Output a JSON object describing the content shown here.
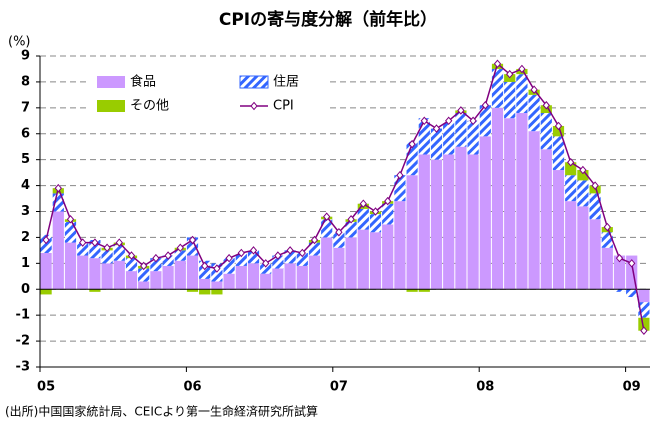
{
  "chart_data": {
    "type": "bar",
    "title": "CPIの寄与度分解（前年比）",
    "y_unit": "(%)",
    "source": "(出所)中国国家統計局、CEICより第一生命経済研究所試算",
    "categories": [
      "05",
      null,
      null,
      null,
      null,
      null,
      null,
      null,
      null,
      null,
      null,
      null,
      "06",
      null,
      null,
      null,
      null,
      null,
      null,
      null,
      null,
      null,
      null,
      null,
      "07",
      null,
      null,
      null,
      null,
      null,
      null,
      null,
      null,
      null,
      null,
      null,
      "08",
      null,
      null,
      null,
      null,
      null,
      null,
      null,
      null,
      null,
      null,
      null,
      "09",
      null
    ],
    "series": [
      {
        "name": "食品",
        "color": "#cc99ff",
        "values": [
          1.4,
          3.0,
          1.8,
          1.3,
          1.2,
          1.0,
          1.1,
          0.7,
          0.3,
          0.7,
          0.9,
          1.1,
          1.3,
          0.4,
          0.3,
          0.6,
          0.9,
          1.0,
          0.6,
          0.8,
          1.0,
          0.9,
          1.3,
          2.0,
          1.6,
          2.0,
          2.3,
          2.2,
          2.5,
          3.4,
          4.4,
          5.2,
          5.0,
          5.2,
          5.5,
          5.2,
          5.9,
          7.0,
          6.6,
          6.8,
          6.1,
          5.4,
          4.6,
          3.4,
          3.2,
          2.7,
          1.6,
          1.3,
          1.3,
          -0.5
        ]
      },
      {
        "name": "住居",
        "color": "#3366ff",
        "hatch": true,
        "values": [
          0.7,
          0.7,
          0.8,
          0.5,
          0.7,
          0.5,
          0.6,
          0.5,
          0.5,
          0.5,
          0.4,
          0.4,
          0.7,
          0.7,
          0.7,
          0.6,
          0.5,
          0.5,
          0.4,
          0.5,
          0.5,
          0.5,
          0.5,
          0.7,
          0.6,
          0.6,
          0.8,
          0.7,
          0.8,
          1.0,
          1.3,
          1.4,
          1.2,
          1.3,
          1.3,
          1.3,
          1.2,
          1.5,
          1.4,
          1.5,
          1.4,
          1.4,
          1.3,
          1.0,
          1.0,
          1.0,
          0.6,
          -0.1,
          -0.3,
          -0.6
        ]
      },
      {
        "name": "その他",
        "color": "#99cc00",
        "values": [
          -0.2,
          0.2,
          0.1,
          0,
          -0.1,
          0.1,
          0.1,
          0.1,
          0.1,
          0,
          0,
          0.1,
          -0.1,
          -0.2,
          -0.2,
          0,
          0,
          0,
          0,
          0,
          0,
          0,
          0.1,
          0.1,
          0,
          0.1,
          0.2,
          0.1,
          0.1,
          0,
          -0.1,
          -0.1,
          0,
          0,
          0.1,
          0,
          0,
          0.2,
          0.3,
          0.2,
          0.2,
          0.3,
          0.4,
          0.5,
          0.4,
          0.3,
          0.2,
          0,
          0,
          -0.5
        ]
      },
      {
        "name": "CPI",
        "color": "#800080",
        "type": "line",
        "values": [
          1.9,
          3.9,
          2.7,
          1.8,
          1.8,
          1.6,
          1.8,
          1.3,
          0.9,
          1.2,
          1.3,
          1.6,
          1.9,
          0.9,
          0.8,
          1.2,
          1.4,
          1.5,
          1.0,
          1.3,
          1.5,
          1.4,
          1.9,
          2.8,
          2.2,
          2.7,
          3.3,
          3.0,
          3.4,
          4.4,
          5.6,
          6.5,
          6.2,
          6.5,
          6.9,
          6.5,
          7.1,
          8.7,
          8.3,
          8.5,
          7.7,
          7.1,
          6.3,
          4.9,
          4.6,
          4.0,
          2.4,
          1.2,
          1.0,
          -1.6
        ]
      }
    ],
    "ylim": [
      -3,
      9
    ],
    "yticks": [
      -3,
      -2,
      -1,
      0,
      1,
      2,
      3,
      4,
      5,
      6,
      7,
      8,
      9
    ],
    "grid": true
  }
}
